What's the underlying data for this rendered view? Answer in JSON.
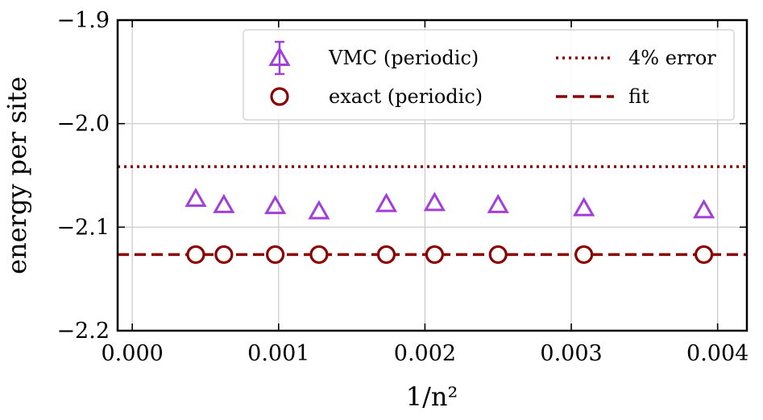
{
  "chart_data": {
    "type": "scatter",
    "xlabel": "1/n²",
    "ylabel": "energy per site",
    "xlim": [
      -0.0001,
      0.0042
    ],
    "ylim": [
      -2.2,
      -1.9
    ],
    "x_ticks": [
      0.0,
      0.001,
      0.002,
      0.003,
      0.004
    ],
    "x_tick_labels": [
      "0.000",
      "0.001",
      "0.002",
      "0.003",
      "0.004"
    ],
    "y_ticks": [
      -1.9,
      -2.0,
      -2.1,
      -2.2
    ],
    "y_tick_labels": [
      "−1.9",
      "−2.0",
      "−2.1",
      "−2.2"
    ],
    "grid": true,
    "legend_placement": "top-right",
    "series": [
      {
        "name": "VMC (periodic)",
        "marker": "triangle",
        "color": "#a23fd8",
        "x": [
          0.000434,
          0.000626,
          0.000977,
          0.001276,
          0.001736,
          0.002066,
          0.0025,
          0.003086,
          0.003906
        ],
        "y": [
          -2.0735,
          -2.0795,
          -2.0805,
          -2.0855,
          -2.0785,
          -2.0775,
          -2.0795,
          -2.0825,
          -2.0845
        ]
      },
      {
        "name": "exact (periodic)",
        "marker": "circle",
        "color": "#8b0000",
        "x": [
          0.000434,
          0.000626,
          0.000977,
          0.001276,
          0.001736,
          0.002066,
          0.0025,
          0.003086,
          0.003906
        ],
        "y": [
          -2.1265,
          -2.1265,
          -2.1265,
          -2.1265,
          -2.1265,
          -2.1265,
          -2.1265,
          -2.1265,
          -2.1265
        ]
      }
    ],
    "lines": [
      {
        "name": "4% error",
        "style": "dotted",
        "color": "#8b0000",
        "y": -2.0415
      },
      {
        "name": "fit",
        "style": "dashed",
        "color": "#8b0000",
        "y": -2.1265
      }
    ]
  }
}
